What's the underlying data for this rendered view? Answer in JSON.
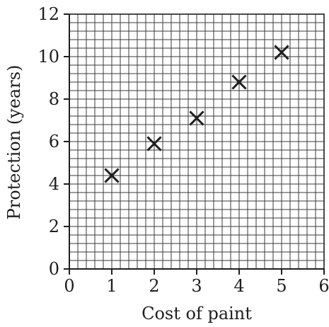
{
  "chart_data": {
    "type": "scatter",
    "title": "",
    "xlabel": "Cost of paint",
    "ylabel": "Protection (years)",
    "xlim": [
      0,
      6
    ],
    "ylim": [
      0,
      12
    ],
    "x_ticks": [
      0,
      1,
      2,
      3,
      4,
      5,
      6
    ],
    "y_ticks": [
      0,
      2,
      4,
      6,
      8,
      10,
      12
    ],
    "grid": true,
    "minor_grid_x_step": 0.2,
    "minor_grid_y_step": 0.4,
    "marker": "x",
    "points": [
      {
        "x": 1,
        "y": 4.4
      },
      {
        "x": 2,
        "y": 5.9
      },
      {
        "x": 3,
        "y": 7.1
      },
      {
        "x": 4,
        "y": 8.8
      },
      {
        "x": 5,
        "y": 10.2
      }
    ],
    "colors": {
      "axis": "#1f1f1f",
      "grid": "#3a3a3a",
      "marker": "#1f1f1f"
    }
  }
}
